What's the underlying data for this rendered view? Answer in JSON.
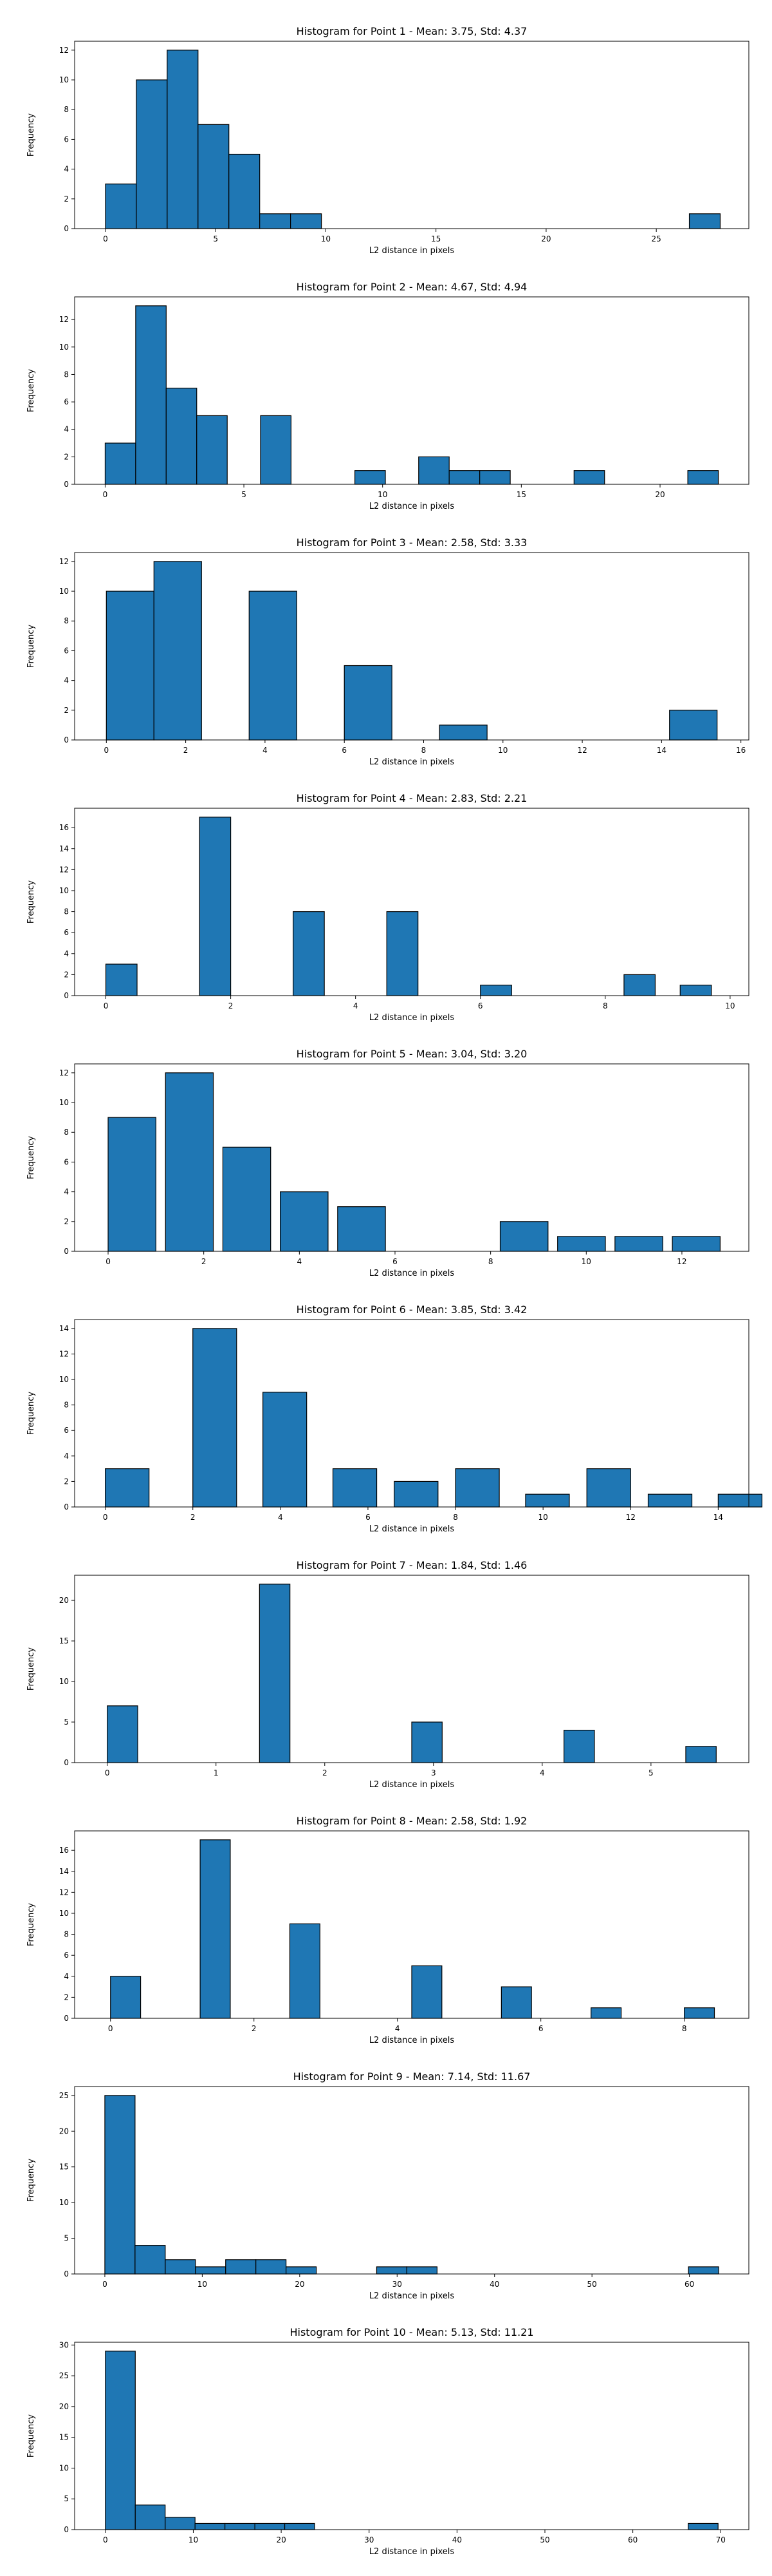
{
  "chart_data": [
    {
      "type": "bar",
      "title": "Histogram for Point 1 - Mean: 3.75, Std: 4.37",
      "xlabel": "L2 distance in pixels",
      "ylabel": "Frequency",
      "xlim": [
        -1.4,
        29.2
      ],
      "ylim": [
        0,
        12.6
      ],
      "xticks": [
        0,
        5,
        10,
        15,
        20,
        25
      ],
      "yticks": [
        0,
        2,
        4,
        6,
        8,
        10,
        12
      ],
      "bins": [
        {
          "x0": 0.0,
          "x1": 1.4,
          "count": 3
        },
        {
          "x0": 1.4,
          "x1": 2.8,
          "count": 10
        },
        {
          "x0": 2.8,
          "x1": 4.2,
          "count": 12
        },
        {
          "x0": 4.2,
          "x1": 5.6,
          "count": 7
        },
        {
          "x0": 5.6,
          "x1": 7.0,
          "count": 5
        },
        {
          "x0": 7.0,
          "x1": 8.4,
          "count": 1
        },
        {
          "x0": 8.4,
          "x1": 9.8,
          "count": 1
        },
        {
          "x0": 26.5,
          "x1": 27.9,
          "count": 1
        }
      ]
    },
    {
      "type": "bar",
      "title": "Histogram for Point 2 - Mean: 4.67, Std: 4.94",
      "xlabel": "L2 distance in pixels",
      "ylabel": "Frequency",
      "xlim": [
        -1.1,
        23.2
      ],
      "ylim": [
        0,
        13.65
      ],
      "xticks": [
        0,
        5,
        10,
        15,
        20
      ],
      "yticks": [
        0,
        2,
        4,
        6,
        8,
        10,
        12
      ],
      "bins": [
        {
          "x0": 0.0,
          "x1": 1.1,
          "count": 3
        },
        {
          "x0": 1.1,
          "x1": 2.2,
          "count": 13
        },
        {
          "x0": 2.2,
          "x1": 3.3,
          "count": 7
        },
        {
          "x0": 3.3,
          "x1": 4.4,
          "count": 5
        },
        {
          "x0": 5.6,
          "x1": 6.7,
          "count": 5
        },
        {
          "x0": 9.0,
          "x1": 10.1,
          "count": 1
        },
        {
          "x0": 11.3,
          "x1": 12.4,
          "count": 2
        },
        {
          "x0": 12.4,
          "x1": 13.5,
          "count": 1
        },
        {
          "x0": 13.5,
          "x1": 14.6,
          "count": 1
        },
        {
          "x0": 16.9,
          "x1": 18.0,
          "count": 1
        },
        {
          "x0": 21.0,
          "x1": 22.1,
          "count": 1
        }
      ]
    },
    {
      "type": "bar",
      "title": "Histogram for Point 3 - Mean: 2.58, Std: 3.33",
      "xlabel": "L2 distance in pixels",
      "ylabel": "Frequency",
      "xlim": [
        -0.8,
        16.2
      ],
      "ylim": [
        0,
        12.6
      ],
      "xticks": [
        0,
        2,
        4,
        6,
        8,
        10,
        12,
        14,
        16
      ],
      "yticks": [
        0,
        2,
        4,
        6,
        8,
        10,
        12
      ],
      "bins": [
        {
          "x0": 0.0,
          "x1": 1.2,
          "count": 10
        },
        {
          "x0": 1.2,
          "x1": 2.4,
          "count": 12
        },
        {
          "x0": 3.6,
          "x1": 4.8,
          "count": 10
        },
        {
          "x0": 6.0,
          "x1": 7.2,
          "count": 5
        },
        {
          "x0": 8.4,
          "x1": 9.6,
          "count": 1
        },
        {
          "x0": 14.2,
          "x1": 15.4,
          "count": 2
        }
      ]
    },
    {
      "type": "bar",
      "title": "Histogram for Point 4 - Mean: 2.83, Std: 2.21",
      "xlabel": "L2 distance in pixels",
      "ylabel": "Frequency",
      "xlim": [
        -0.5,
        10.3
      ],
      "ylim": [
        0,
        17.85
      ],
      "xticks": [
        0,
        2,
        4,
        6,
        8,
        10
      ],
      "yticks": [
        0,
        2,
        4,
        6,
        8,
        10,
        12,
        14,
        16
      ],
      "bins": [
        {
          "x0": 0.0,
          "x1": 0.5,
          "count": 3
        },
        {
          "x0": 1.5,
          "x1": 2.0,
          "count": 17
        },
        {
          "x0": 3.0,
          "x1": 3.5,
          "count": 8
        },
        {
          "x0": 4.5,
          "x1": 5.0,
          "count": 8
        },
        {
          "x0": 6.0,
          "x1": 6.5,
          "count": 1
        },
        {
          "x0": 8.3,
          "x1": 8.8,
          "count": 2
        },
        {
          "x0": 9.2,
          "x1": 9.7,
          "count": 1
        }
      ]
    },
    {
      "type": "bar",
      "title": "Histogram for Point 5 - Mean: 3.04, Std: 3.20",
      "xlabel": "L2 distance in pixels",
      "ylabel": "Frequency",
      "xlim": [
        -0.7,
        13.4
      ],
      "ylim": [
        0,
        12.6
      ],
      "xticks": [
        0,
        2,
        4,
        6,
        8,
        10,
        12
      ],
      "yticks": [
        0,
        2,
        4,
        6,
        8,
        10,
        12
      ],
      "bins": [
        {
          "x0": 0.0,
          "x1": 1.0,
          "count": 9
        },
        {
          "x0": 1.2,
          "x1": 2.2,
          "count": 12
        },
        {
          "x0": 2.4,
          "x1": 3.4,
          "count": 7
        },
        {
          "x0": 3.6,
          "x1": 4.6,
          "count": 4
        },
        {
          "x0": 4.8,
          "x1": 5.8,
          "count": 3
        },
        {
          "x0": 8.2,
          "x1": 9.2,
          "count": 2
        },
        {
          "x0": 9.4,
          "x1": 10.4,
          "count": 1
        },
        {
          "x0": 10.6,
          "x1": 11.6,
          "count": 1
        },
        {
          "x0": 11.8,
          "x1": 12.8,
          "count": 1
        }
      ]
    },
    {
      "type": "bar",
      "title": "Histogram for Point 6 - Mean: 3.85, Std: 3.42",
      "xlabel": "L2 distance in pixels",
      "ylabel": "Frequency",
      "xlim": [
        -0.7,
        14.7
      ],
      "ylim": [
        0,
        14.7
      ],
      "xticks": [
        0,
        2,
        4,
        6,
        8,
        10,
        12,
        14
      ],
      "yticks": [
        0,
        2,
        4,
        6,
        8,
        10,
        12,
        14
      ],
      "bins": [
        {
          "x0": 0.0,
          "x1": 1.0,
          "count": 3
        },
        {
          "x0": 2.0,
          "x1": 3.0,
          "count": 14
        },
        {
          "x0": 3.6,
          "x1": 4.6,
          "count": 9
        },
        {
          "x0": 5.2,
          "x1": 6.2,
          "count": 3
        },
        {
          "x0": 6.6,
          "x1": 7.6,
          "count": 2
        },
        {
          "x0": 8.0,
          "x1": 9.0,
          "count": 3
        },
        {
          "x0": 9.6,
          "x1": 10.6,
          "count": 1
        },
        {
          "x0": 11.0,
          "x1": 12.0,
          "count": 3
        },
        {
          "x0": 12.4,
          "x1": 13.4,
          "count": 1
        },
        {
          "x0": 14.0,
          "x1": 15.0,
          "count": 1
        }
      ]
    },
    {
      "type": "bar",
      "title": "Histogram for Point 7 - Mean: 1.84, Std: 1.46",
      "xlabel": "L2 distance in pixels",
      "ylabel": "Frequency",
      "xlim": [
        -0.3,
        5.9
      ],
      "ylim": [
        0,
        23.1
      ],
      "xticks": [
        0,
        1,
        2,
        3,
        4,
        5
      ],
      "yticks": [
        0,
        5,
        10,
        15,
        20
      ],
      "bins": [
        {
          "x0": 0.0,
          "x1": 0.28,
          "count": 7
        },
        {
          "x0": 1.4,
          "x1": 1.68,
          "count": 22
        },
        {
          "x0": 2.8,
          "x1": 3.08,
          "count": 5
        },
        {
          "x0": 4.2,
          "x1": 4.48,
          "count": 4
        },
        {
          "x0": 5.32,
          "x1": 5.6,
          "count": 2
        }
      ]
    },
    {
      "type": "bar",
      "title": "Histogram for Point 8 - Mean: 2.58, Std: 1.92",
      "xlabel": "L2 distance in pixels",
      "ylabel": "Frequency",
      "xlim": [
        -0.5,
        8.9
      ],
      "ylim": [
        0,
        17.85
      ],
      "xticks": [
        0,
        2,
        4,
        6,
        8
      ],
      "yticks": [
        0,
        2,
        4,
        6,
        8,
        10,
        12,
        14,
        16
      ],
      "bins": [
        {
          "x0": 0.0,
          "x1": 0.42,
          "count": 4
        },
        {
          "x0": 1.25,
          "x1": 1.67,
          "count": 17
        },
        {
          "x0": 2.5,
          "x1": 2.92,
          "count": 9
        },
        {
          "x0": 4.2,
          "x1": 4.62,
          "count": 5
        },
        {
          "x0": 5.45,
          "x1": 5.87,
          "count": 3
        },
        {
          "x0": 6.7,
          "x1": 7.12,
          "count": 1
        },
        {
          "x0": 8.0,
          "x1": 8.42,
          "count": 1
        }
      ]
    },
    {
      "type": "bar",
      "title": "Histogram for Point 9 - Mean: 7.14, Std: 11.67",
      "xlabel": "L2 distance in pixels",
      "ylabel": "Frequency",
      "xlim": [
        -3.1,
        66.1
      ],
      "ylim": [
        0,
        26.25
      ],
      "xticks": [
        0,
        10,
        20,
        30,
        40,
        50,
        60
      ],
      "yticks": [
        0,
        5,
        10,
        15,
        20,
        25
      ],
      "bins": [
        {
          "x0": 0.0,
          "x1": 3.1,
          "count": 25
        },
        {
          "x0": 3.1,
          "x1": 6.2,
          "count": 4
        },
        {
          "x0": 6.2,
          "x1": 9.3,
          "count": 2
        },
        {
          "x0": 9.3,
          "x1": 12.4,
          "count": 1
        },
        {
          "x0": 12.4,
          "x1": 15.5,
          "count": 2
        },
        {
          "x0": 15.5,
          "x1": 18.6,
          "count": 2
        },
        {
          "x0": 18.6,
          "x1": 21.7,
          "count": 1
        },
        {
          "x0": 27.9,
          "x1": 31.0,
          "count": 1
        },
        {
          "x0": 31.0,
          "x1": 34.1,
          "count": 1
        },
        {
          "x0": 59.9,
          "x1": 63.0,
          "count": 1
        }
      ]
    },
    {
      "type": "bar",
      "title": "Histogram for Point 10 - Mean: 5.13, Std: 11.21",
      "xlabel": "L2 distance in pixels",
      "ylabel": "Frequency",
      "xlim": [
        -3.5,
        73.2
      ],
      "ylim": [
        0,
        30.45
      ],
      "xticks": [
        0,
        10,
        20,
        30,
        40,
        50,
        60,
        70
      ],
      "yticks": [
        0,
        5,
        10,
        15,
        20,
        25,
        30
      ],
      "bins": [
        {
          "x0": 0.0,
          "x1": 3.4,
          "count": 29
        },
        {
          "x0": 3.4,
          "x1": 6.8,
          "count": 4
        },
        {
          "x0": 6.8,
          "x1": 10.2,
          "count": 2
        },
        {
          "x0": 10.2,
          "x1": 13.6,
          "count": 1
        },
        {
          "x0": 13.6,
          "x1": 17.0,
          "count": 1
        },
        {
          "x0": 17.0,
          "x1": 20.4,
          "count": 1
        },
        {
          "x0": 20.4,
          "x1": 23.8,
          "count": 1
        },
        {
          "x0": 66.3,
          "x1": 69.7,
          "count": 1
        }
      ]
    }
  ]
}
